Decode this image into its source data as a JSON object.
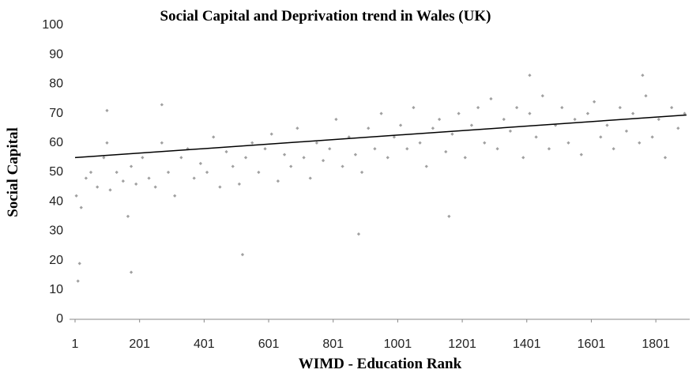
{
  "chart_data": {
    "type": "scatter",
    "title": "Social Capital and Deprivation trend in Wales (UK)",
    "x_label": "WIMD - Education Rank",
    "y_label": "Social Capital",
    "color": "#a0a0a0",
    "x": [
      5,
      20,
      35,
      50,
      70,
      90,
      100,
      110,
      130,
      150,
      165,
      175,
      190,
      210,
      230,
      250,
      270,
      290,
      310,
      330,
      350,
      370,
      390,
      410,
      430,
      450,
      470,
      490,
      510,
      530,
      550,
      570,
      590,
      610,
      630,
      650,
      670,
      690,
      710,
      730,
      750,
      770,
      790,
      810,
      830,
      850,
      870,
      890,
      910,
      930,
      950,
      970,
      990,
      1010,
      1030,
      1050,
      1070,
      1090,
      1110,
      1130,
      1150,
      1170,
      1190,
      1210,
      1230,
      1250,
      1270,
      1290,
      1310,
      1330,
      1350,
      1370,
      1390,
      1410,
      1430,
      1450,
      1470,
      1490,
      1510,
      1530,
      1550,
      1570,
      1590,
      1610,
      1630,
      1650,
      1670,
      1690,
      1710,
      1730,
      1750,
      1770,
      1790,
      1810,
      1830,
      1850,
      1870,
      1890,
      10,
      15,
      175,
      520,
      880,
      100,
      270,
      1410,
      1760,
      1160
    ],
    "values": [
      42,
      38,
      48,
      50,
      45,
      55,
      60,
      44,
      50,
      47,
      35,
      52,
      46,
      55,
      48,
      45,
      60,
      50,
      42,
      55,
      58,
      48,
      53,
      50,
      62,
      45,
      57,
      52,
      46,
      55,
      60,
      50,
      58,
      63,
      47,
      56,
      52,
      65,
      55,
      48,
      60,
      54,
      58,
      68,
      52,
      62,
      56,
      50,
      65,
      58,
      70,
      55,
      62,
      66,
      58,
      72,
      60,
      52,
      65,
      68,
      57,
      63,
      70,
      55,
      66,
      72,
      60,
      75,
      58,
      68,
      64,
      72,
      55,
      70,
      62,
      76,
      58,
      66,
      72,
      60,
      68,
      56,
      70,
      74,
      62,
      66,
      58,
      72,
      64,
      70,
      60,
      76,
      62,
      68,
      55,
      72,
      65,
      70,
      13,
      19,
      16,
      22,
      29,
      71,
      73,
      83,
      83,
      35
    ],
    "trendline": {
      "x": [
        1,
        1896
      ],
      "values": [
        55,
        69.5
      ],
      "color": "#000000"
    },
    "xlim": [
      1,
      1906
    ],
    "xticks": [
      1,
      201,
      401,
      601,
      801,
      1001,
      1201,
      1401,
      1601,
      1801
    ],
    "ylim": [
      0,
      100
    ],
    "yticks": [
      0,
      10,
      20,
      30,
      40,
      50,
      60,
      70,
      80,
      90,
      100
    ],
    "grid": false
  }
}
